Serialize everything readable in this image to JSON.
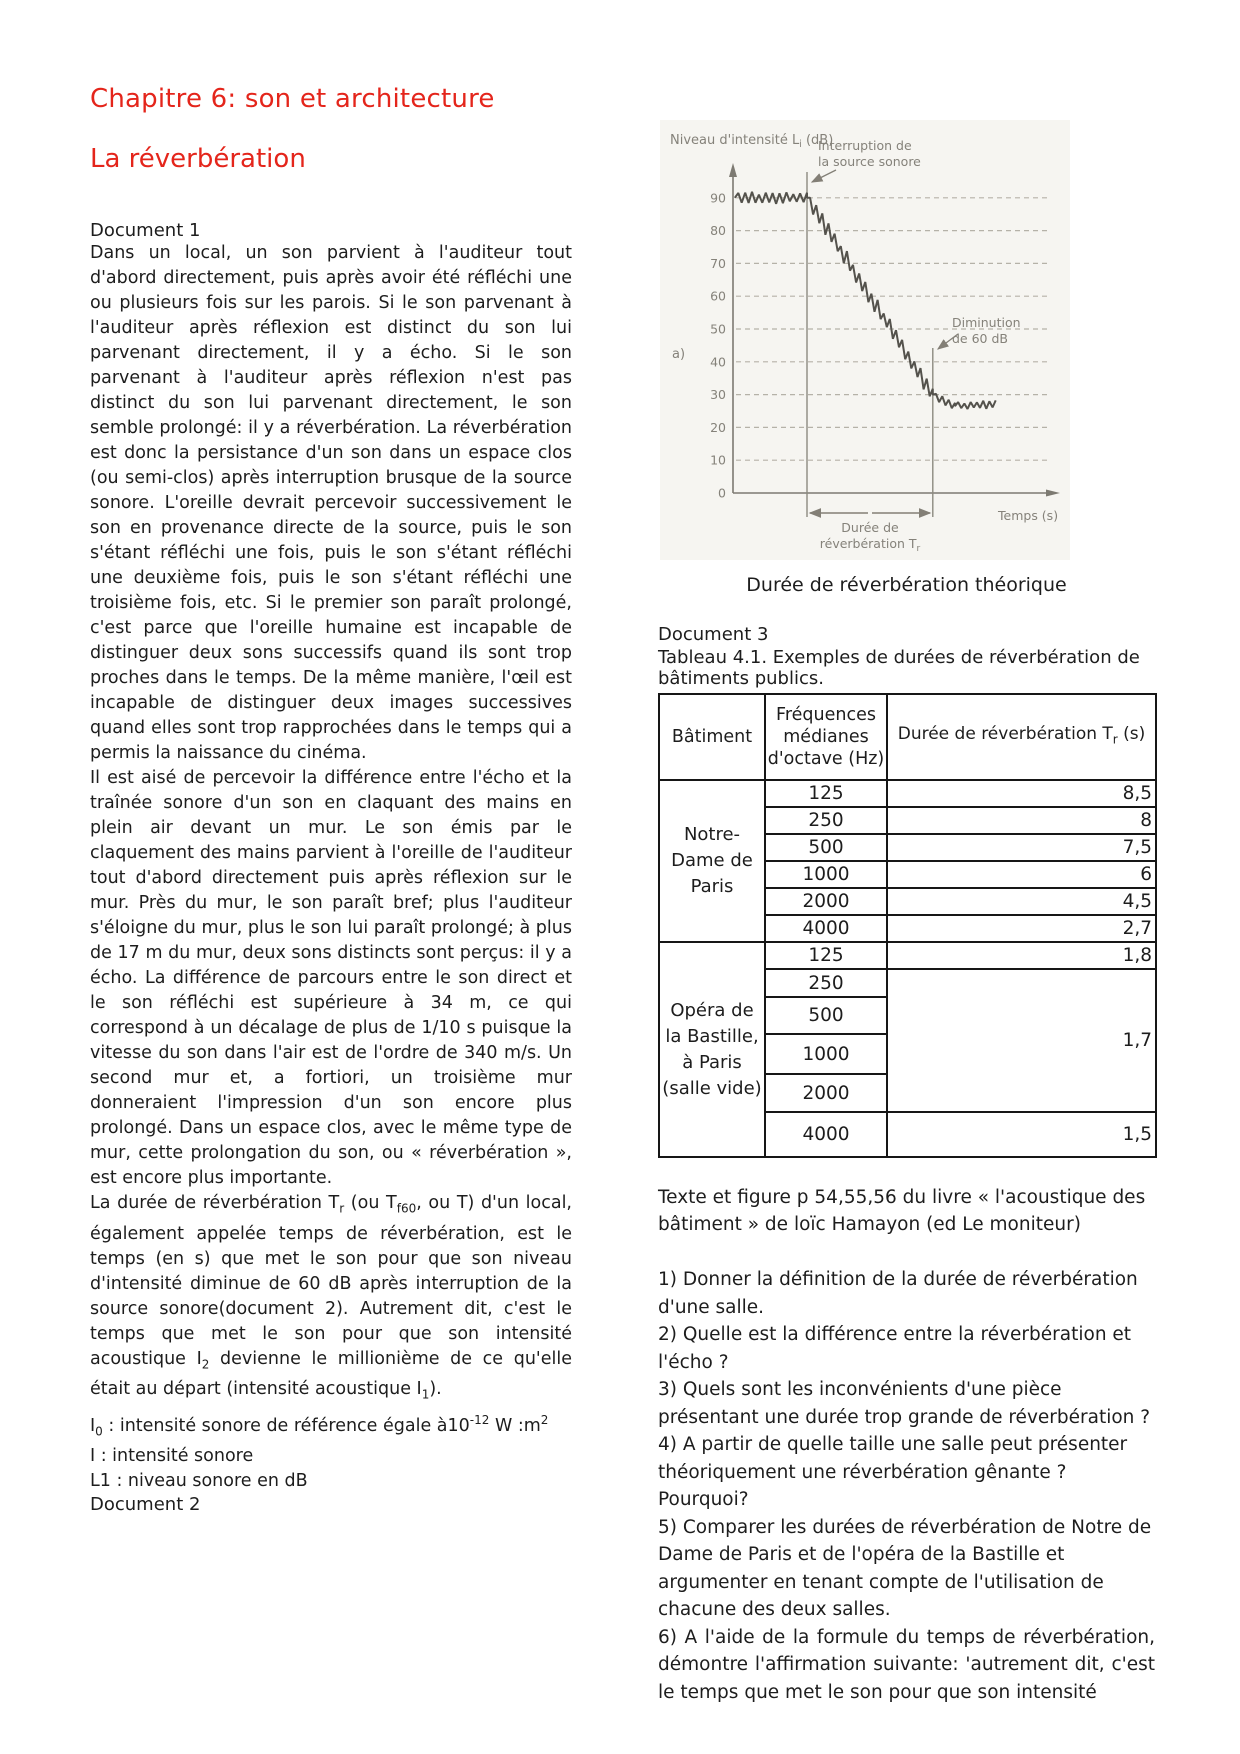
{
  "page": {
    "title": "Chapitre 6: son et architecture",
    "subtitle": "La réverbération",
    "accent_color": "#e4251b"
  },
  "document1": {
    "label": "Document 1",
    "paragraphs": [
      "Dans un local, un son parvient à l'auditeur tout d'abord directement, puis après avoir été réfléchi une ou plusieurs fois sur les parois. Si le son parvenant à l'auditeur après réflexion est distinct du son lui parvenant directement, il y a écho. Si le son parvenant à l'auditeur après réflexion n'est pas distinct du son lui parvenant directement, le son semble prolongé: il y a réverbération. La réverbération est donc la persistance d'un son dans un espace clos (ou semi-clos) après interruption brusque de la source sonore. L'oreille devrait percevoir successivement le son en provenance directe de la source, puis le son s'étant réfléchi une fois, puis le son s'étant réfléchi une deuxième fois, puis le son s'étant réfléchi une troisième fois, etc. Si le premier son paraît prolongé, c'est parce que l'oreille humaine est incapable de distinguer deux sons successifs quand ils sont trop proches dans le temps. De la même manière, l'œil est incapable de distinguer deux images successives quand elles sont trop rapprochées dans le temps qui a permis la naissance du cinéma.",
      "Il est aisé de percevoir la différence entre l'écho et la traînée sonore d'un son en claquant des mains en plein air devant un mur. Le son émis par le claquement des mains parvient à l'oreille de l'auditeur tout d'abord directement puis après réflexion sur le mur. Près du mur, le son paraît bref; plus l'auditeur s'éloigne du mur, plus le son lui paraît prolongé; à plus de 17 m du mur, deux sons distincts sont perçus: il y a écho. La différence de parcours entre le son direct et le son réfléchi est supérieure à 34 m, ce qui correspond à un décalage de plus de 1/10 s puisque la vitesse du son dans l'air est de l'ordre de 340 m/s. Un second mur et, a fortiori, un troisième mur donneraient l'impression d'un son encore plus prolongé. Dans un espace clos, avec le même type de mur, cette prolongation du son, ou « réverbération », est encore plus importante.",
      "La durée de réverbération T<sub>r</sub> (ou T<sub>f60</sub>, ou T) d'un local, également appelée temps de réverbération, est le temps (en s) que met le son pour que son niveau d'intensité diminue de 60 dB après interruption de la source sonore(document 2). Autrement dit, c'est le temps que met le son pour que son intensité acoustique I<sub>2</sub> devienne le millionième de ce qu'elle était au départ (intensité acoustique I<sub>1</sub>)."
    ],
    "info_lines": [
      "I<sub>0</sub> : intensité sonore de référence égale à10<sup>-12</sup> W :m<sup>2</sup>",
      "I : intensité sonore",
      "L1 : niveau sonore en dB"
    ]
  },
  "document2": {
    "label": "Document 2"
  },
  "figure": {
    "caption": "Durée de réverbération théorique"
  },
  "chart_data": {
    "type": "line",
    "panel_label": "a)",
    "ylabel": "Niveau d'intensité L<sub>i</sub> (dB)",
    "xlabel": "Temps (s)",
    "yticks": [
      0,
      10,
      20,
      30,
      40,
      50,
      60,
      70,
      80,
      90
    ],
    "ylim": [
      0,
      100
    ],
    "grid": "dashed horizontal",
    "legend_position": "none",
    "annotations": {
      "interruption": "Interruption de\nla source sonore",
      "diminution": "Diminution\nde 60 dB",
      "duration": "Durée de\nréverbération T<sub>r</sub>"
    },
    "key_values": {
      "initial_level_dB": 90,
      "decay_dB": 60,
      "level_after_decay_dB": 30,
      "residual_level_dB": 27
    },
    "interruption_t": 2.0,
    "decay_end_t": 5.4,
    "series": [
      {
        "name": "Niveau sonore",
        "segments": [
          {
            "from": [
              0.05,
              90
            ],
            "to": [
              2.0,
              90
            ],
            "noise": 2.0,
            "points": 22
          },
          {
            "from": [
              2.0,
              90
            ],
            "to": [
              5.4,
              30
            ],
            "noise": 2.8,
            "points": 42
          },
          {
            "from": [
              5.4,
              30
            ],
            "to": [
              6.0,
              26.5
            ],
            "noise": 1.5,
            "points": 8
          },
          {
            "from": [
              6.0,
              26.5
            ],
            "to": [
              7.1,
              27
            ],
            "noise": 1.3,
            "points": 14
          }
        ]
      }
    ]
  },
  "document3": {
    "label": "Document 3",
    "table_title": "Tableau 4.1. Exemples de durées de réverbération de bâtiments publics.",
    "table": {
      "col_headers": [
        "Bâtiment",
        "Fréquences médianes d'octave (Hz)",
        "Durée de réverbération T<sub>r</sub> (s)"
      ],
      "groups": [
        {
          "batiment": "Notre-Dame de Paris",
          "rows": [
            {
              "freq": "125",
              "duree": "8,5",
              "span": 1
            },
            {
              "freq": "250",
              "duree": "8",
              "span": 1
            },
            {
              "freq": "500",
              "duree": "7,5",
              "span": 1
            },
            {
              "freq": "1000",
              "duree": "6",
              "span": 1
            },
            {
              "freq": "2000",
              "duree": "4,5",
              "span": 1
            },
            {
              "freq": "4000",
              "duree": "2,7",
              "span": 1
            }
          ]
        },
        {
          "batiment": "Opéra de la Bastille, à Paris (salle vide)",
          "rows": [
            {
              "freq": "125",
              "duree": "1,8",
              "span": 1
            },
            {
              "freq": "250",
              "duree": "1,7",
              "span": 4
            },
            {
              "freq": "500"
            },
            {
              "freq": "1000"
            },
            {
              "freq": "2000"
            },
            {
              "freq": "4000",
              "duree": "1,5",
              "span": 1
            }
          ]
        }
      ]
    }
  },
  "source_note": "Texte et figure p 54,55,56 du livre « l'acoustique des bâtiment » de loïc Hamayon (ed Le moniteur)",
  "questions": [
    "1) Donner la définition de la durée de réverbération d'une salle.",
    "2) Quelle est la différence entre la réverbération et l'écho ?",
    "3) Quels sont les inconvénients d'une pièce présentant une durée trop grande de réverbération ?",
    "4) A partir de quelle taille une salle peut présenter théoriquement une réverbération gênante ? Pourquoi?",
    "5) Comparer les durées de réverbération de Notre de Dame de Paris et de l'opéra de la Bastille et argumenter en tenant compte de l'utilisation de chacune des deux salles.",
    "6) A l'aide de la formule du temps de réverbération, démontre l'affirmation suivante: 'autrement dit, c'est le temps que met le son pour que son intensité"
  ]
}
